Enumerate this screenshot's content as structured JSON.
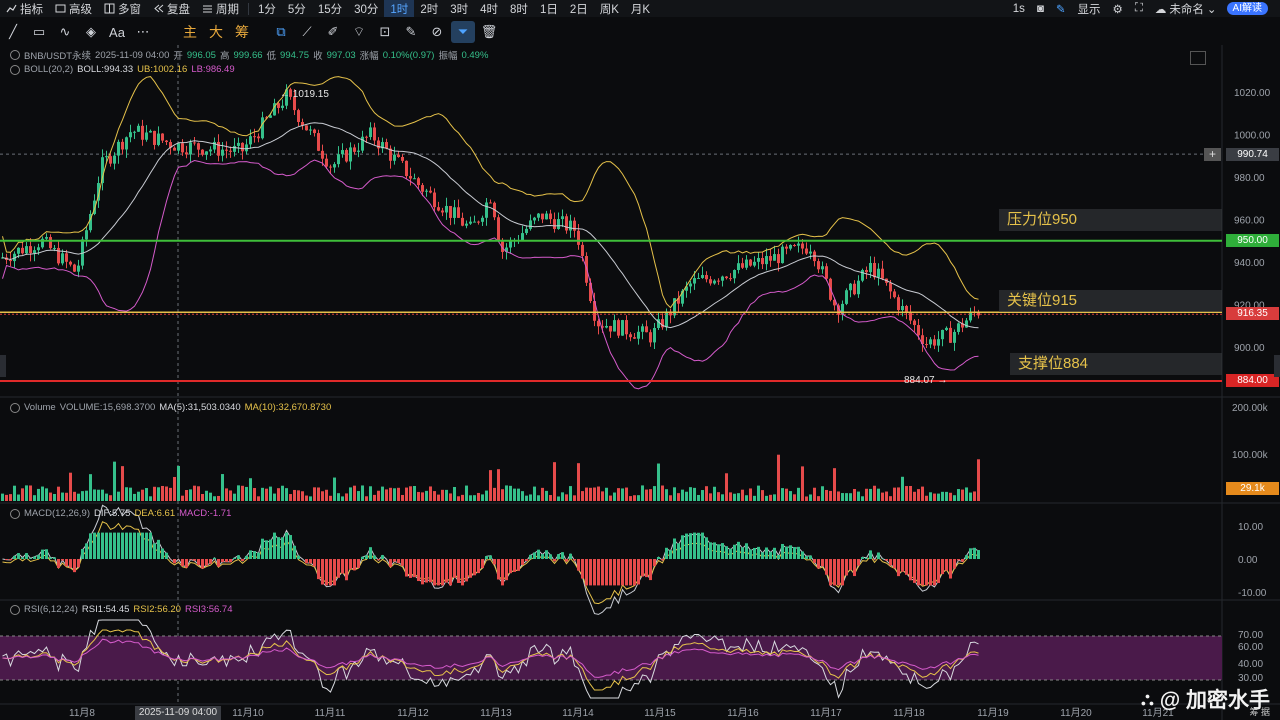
{
  "toolbar": {
    "items": [
      {
        "label": "指标",
        "icon": "indicator-icon"
      },
      {
        "label": "高级",
        "icon": "advanced-icon"
      },
      {
        "label": "多窗",
        "icon": "multi-window-icon"
      },
      {
        "label": "复盘",
        "icon": "replay-icon"
      },
      {
        "label": "周期",
        "icon": "period-icon"
      }
    ],
    "intervals": [
      "1分",
      "5分",
      "15分",
      "30分",
      "1时",
      "2时",
      "3时",
      "4时",
      "8时",
      "1日",
      "2日",
      "周K",
      "月K"
    ],
    "active_interval": "1时",
    "right": {
      "speed": "1s",
      "display": "显示",
      "layout": "未命名",
      "ai": "AI解读"
    }
  },
  "drawbar": {
    "tools": [
      "line",
      "rect",
      "curve",
      "shapes",
      "text",
      "more"
    ],
    "indicator_shortcuts": [
      "主",
      "大",
      "筹"
    ]
  },
  "symbol_info": {
    "symbol": "BNB/USDT永续",
    "time": "2025-11-09 04:00",
    "open_label": "开",
    "open": "996.05",
    "high_label": "高",
    "high": "999.66",
    "low_label": "低",
    "low": "994.75",
    "close_label": "收",
    "close": "997.03",
    "change_label": "涨幅",
    "change": "0.10%(0.97)",
    "amp_label": "振幅",
    "amp": "0.49%"
  },
  "boll": {
    "name": "BOLL(20,2)",
    "mid": "BOLL:994.33",
    "ub": "UB:1002.16",
    "lb": "LB:986.49"
  },
  "volume": {
    "name": "Volume",
    "vol": "VOLUME:15,698.3700",
    "ma5": "MA(5):31,503.0340",
    "ma10": "MA(10):32,670.8730"
  },
  "macd": {
    "name": "MACD(12,26,9)",
    "dif": "DIF:5.75",
    "dea": "DEA:6.61",
    "macd": "MACD:-1.71"
  },
  "rsi": {
    "name": "RSI(6,12,24)",
    "rsi1": "RSI1:54.45",
    "rsi2": "RSI2:56.20",
    "rsi3": "RSI3:56.74"
  },
  "price_axis": [
    "1020.00",
    "1000.00",
    "980.00",
    "960.00",
    "940.00",
    "920.00",
    "900.00"
  ],
  "price_tags": {
    "crosshair": "990.74",
    "pressure": "950.00",
    "last": "916.35",
    "support": "884.00"
  },
  "extremes": {
    "high": "1019.15",
    "low": "884.07"
  },
  "annotations": {
    "pressure": "压力位950",
    "key": "关键位915",
    "support": "支撑位884"
  },
  "volume_axis": [
    "200.00k",
    "100.00k"
  ],
  "volume_tag": "29.1k",
  "macd_axis": [
    "10.00",
    "0.00",
    "-10.00"
  ],
  "rsi_axis": [
    "70.00",
    "60.00",
    "40.00",
    "30.00"
  ],
  "time_axis": [
    "11月8",
    "11月10",
    "11月11",
    "11月12",
    "11月13",
    "11月14",
    "11月15",
    "11月16",
    "11月17",
    "11月18",
    "11月19",
    "11月20",
    "11月21"
  ],
  "time_cursor": "2025-11-09 04:00",
  "watermark": {
    "handle": "@ 加密水手",
    "sub": "筹 据"
  },
  "colors": {
    "up": "#35c08b",
    "down": "#e64b4b",
    "pressure": "#3fbf3a",
    "key": "#e6c24a",
    "support": "#e02a2a",
    "boll_ub": "#e6c24a",
    "boll_lb": "#d55bcb"
  }
}
